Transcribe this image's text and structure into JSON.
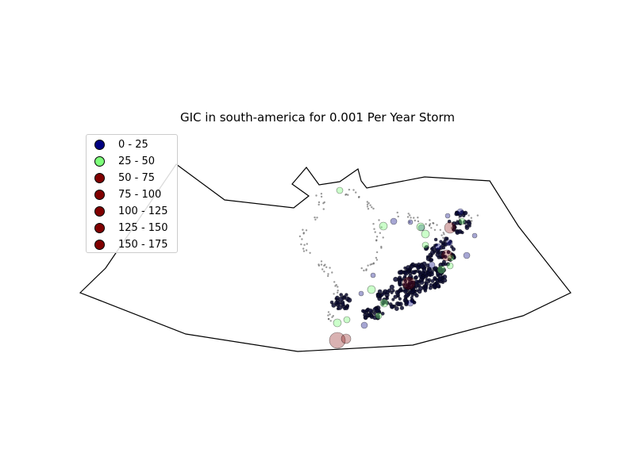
{
  "title": "GIC in south-america for 0.001 Per Year Storm",
  "legend": [
    {
      "label": "0 - 25",
      "color": "#000080"
    },
    {
      "label": "25 - 50",
      "color": "#7dff7a"
    },
    {
      "label": "50 - 75",
      "color": "#800000"
    },
    {
      "label": "75 - 100",
      "color": "#800000"
    },
    {
      "label": "100 - 125",
      "color": "#800000"
    },
    {
      "label": "125 - 150",
      "color": "#800000"
    },
    {
      "label": "150 - 175",
      "color": "#800000"
    }
  ],
  "colors": {
    "low": "#000080",
    "mid": "#7dff7a",
    "high": "#800000",
    "outline": "#000000"
  }
}
